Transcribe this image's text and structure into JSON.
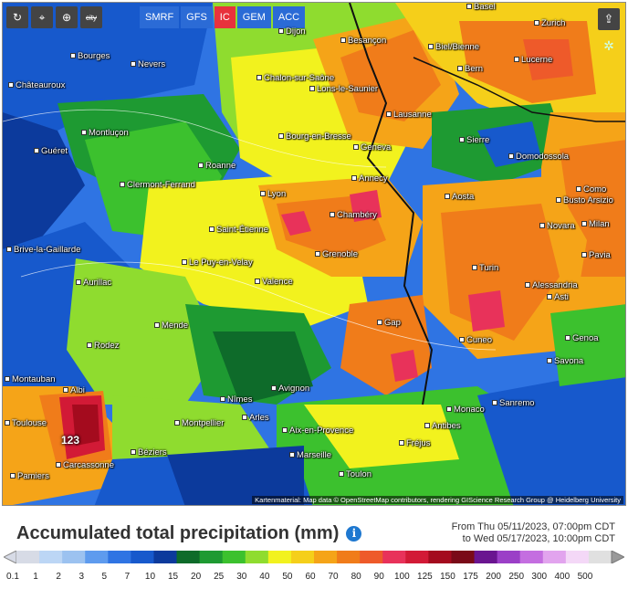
{
  "toolbar": {
    "buttons": [
      {
        "name": "reload-icon",
        "glyph": "↻"
      },
      {
        "name": "location-pin-icon",
        "glyph": "⌖"
      },
      {
        "name": "zoom-icon",
        "glyph": "⊕"
      },
      {
        "name": "city-toggle",
        "glyph": "city"
      }
    ],
    "models": [
      {
        "label": "SMRF",
        "active": false
      },
      {
        "label": "GFS",
        "active": false
      },
      {
        "label": "IC",
        "active": true
      },
      {
        "label": "GEM",
        "active": false
      },
      {
        "label": "ACC",
        "active": false
      }
    ]
  },
  "map": {
    "cities": [
      "Dijon",
      "Besançon",
      "Basel",
      "Zurich",
      "Biel/Bienne",
      "Bern",
      "Lucerne",
      "Bourges",
      "Nevers",
      "Châteauroux",
      "Chalon-sur-Saône",
      "Lons-le-Saunier",
      "Lausanne",
      "Montluçon",
      "Guéret",
      "Roanne",
      "Bourg-en-Bresse",
      "Geneva",
      "Sierre",
      "Domodossola",
      "Clermont-Ferrand",
      "Annecy",
      "Lyon",
      "Como",
      "Busto Arsizio",
      "Aosta",
      "Chambéry",
      "Saint-Étienne",
      "Novara",
      "Milan",
      "Brive-la-Gaillarde",
      "Grenoble",
      "Le Puy-en-Velay",
      "Pavia",
      "Turin",
      "Aurillac",
      "Valence",
      "Alessandria",
      "Asti",
      "Mende",
      "Gap",
      "Cuneo",
      "Genoa",
      "Rodez",
      "Savona",
      "Albi",
      "Nîmes",
      "Avignon",
      "Montauban",
      "Arles",
      "Sanremo",
      "Monaco",
      "Montpellier",
      "Aix-en-Provence",
      "Antibes",
      "Toulouse",
      "Béziers",
      "Fréjus",
      "Carcassonne",
      "Marseille",
      "Pamiers",
      "Toulon"
    ],
    "max_value": "123",
    "attribution": "Kartenmaterial: Map data © OpenStreetMap contributors, rendering GIScience Research Group @ Heidelberg University"
  },
  "header": {
    "title": "Accumulated total precipitation (mm)",
    "from": "From Thu 05/11/2023, 07:00pm CDT",
    "to": "to Wed 05/17/2023, 10:00pm CDT"
  },
  "legend": {
    "ticks": [
      "0.1",
      "1",
      "2",
      "3",
      "5",
      "7",
      "10",
      "15",
      "20",
      "25",
      "30",
      "40",
      "50",
      "60",
      "70",
      "80",
      "90",
      "100",
      "125",
      "150",
      "175",
      "200",
      "250",
      "300",
      "400",
      "500"
    ],
    "colors": [
      "#d7dbe6",
      "#bcd6f5",
      "#9cc2f0",
      "#5e9bee",
      "#2f74e3",
      "#1759cc",
      "#0c3a9c",
      "#0e6b2a",
      "#1e9a32",
      "#3cc12e",
      "#8fdc2f",
      "#f2f21e",
      "#f5cf1a",
      "#f5a418",
      "#f07c1a",
      "#ee5a2a",
      "#e8325a",
      "#d21a36",
      "#a40b1e",
      "#7a0a18",
      "#6a1590",
      "#9b3fc7",
      "#c46ee0",
      "#e2a4ee",
      "#f4d8f7",
      "#e0e0e0"
    ]
  }
}
